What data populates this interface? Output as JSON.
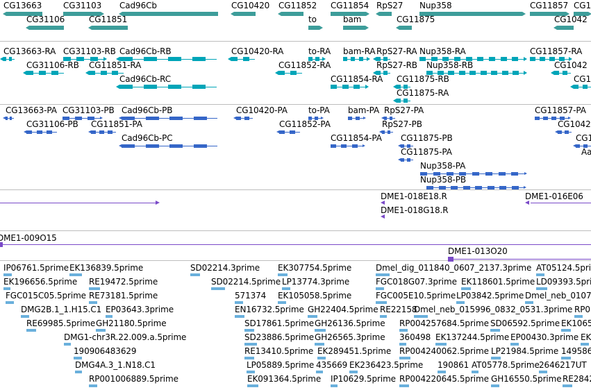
{
  "colors": {
    "gene": "#3d9d9a",
    "transcript": "#00a5b8",
    "protein": "#3566c8",
    "clone": "#7a4ac8",
    "est": "#6ab0dc",
    "divider": "#bdbdbd"
  },
  "tracks": {
    "genes": {
      "labels": [
        "CG13663",
        "CG31103",
        "Cad96Cb",
        "CG10420",
        "CG11852",
        "CG11854",
        "RpS27",
        "Nup358",
        "CG11857",
        "CG1",
        "CG31106",
        "CG11851",
        "to",
        "bam",
        "CG11875",
        "CG1042"
      ]
    },
    "transcripts": {
      "labels": [
        "CG13663-RA",
        "CG31103-RB",
        "Cad96Cb-RB",
        "CG10420-RA",
        "to-RA",
        "bam-RA",
        "RpS27-RA",
        "Nup358-RA",
        "CG11857-RA",
        "CG31106-RB",
        "CG11851-RA",
        "CG11852-RA",
        "RpS27-RB",
        "Nup358-RB",
        "CG1042",
        "Cad96Cb-RC",
        "CG11854-RA",
        "CG11875-RB",
        "CG1",
        "CG11875-RA"
      ]
    },
    "proteins": {
      "labels": [
        "CG13663-PA",
        "CG31103-PB",
        "Cad96Cb-PB",
        "CG10420-PA",
        "to-PA",
        "bam-PA",
        "RpS27-PA",
        "CG11857-PA",
        "CG31106-PB",
        "CG11851-PA",
        "CG11852-PA",
        "RpS27-PB",
        "CG1042",
        "Cad96Cb-PC",
        "CG11854-PA",
        "CG11875-PB",
        "CG1",
        "CG11875-PA",
        "Aa",
        "Nup358-PA",
        "Nup358-PB"
      ]
    },
    "clones_a": {
      "labels": [
        "DME1-018E18.R",
        "DME1-016E06",
        "DME1-018G18.R"
      ]
    },
    "clones_b": {
      "labels": [
        "DME1-009O15",
        "DME1-013O20"
      ]
    },
    "ests": {
      "labels": [
        "IP06761.5prime",
        "EK136839.5prime",
        "SD02214.3prime",
        "EK307754.5prime",
        "Dmel_dig_011840_0607_2137.3prime",
        "AT05124.5prime",
        "EK196656.5prime",
        "RE19472.5prime",
        "SD02214.5prime",
        "LP13774.3prime",
        "FGC018G07.3prime",
        "EK118601.5prime",
        "LD09393.5prime",
        "FGC015C05.5prime",
        "RE73181.5prime",
        "571374",
        "EK105058.5prime",
        "FGC005E10.5prime",
        "LP03842.5prime",
        "Dmel_neb_0107",
        "DMG2B.1_1.H15.C1",
        "EP03643.3prime",
        "EN16732.5prime",
        "GH22404.5prime",
        "RE22158",
        "Dmel_neb_015996_0832_0531.3prime",
        "RP0",
        "RE69985.5prime",
        "GH21180.5prime",
        "SD17861.5prime",
        "GH26136.5prime",
        "RP004257684.5prime",
        "SD06592.5prime",
        "EK1065",
        "DMG1-chr3R.22.009.a.5prime",
        "SD23886.5prime",
        "GH26565.3prime",
        "360498",
        "EK137244.5prime",
        "EP00430.3prime",
        "EK1",
        "190906483629",
        "RE13410.5prime",
        "EK289451.5prime",
        "RP004240062.5prime",
        "LP21984.5prime",
        "149586",
        "DMG4A.3_1.N18.C1",
        "LP05889.5prime",
        "435669",
        "EK236423.5prime",
        "190861",
        "AT05778.5prime",
        "2646217UT",
        "RP001006889.5prime",
        "EK091364.5prime",
        "IP10629.5prime",
        "RP004220645.5prime",
        "GH16550.5prime",
        "RE2842"
      ]
    }
  }
}
